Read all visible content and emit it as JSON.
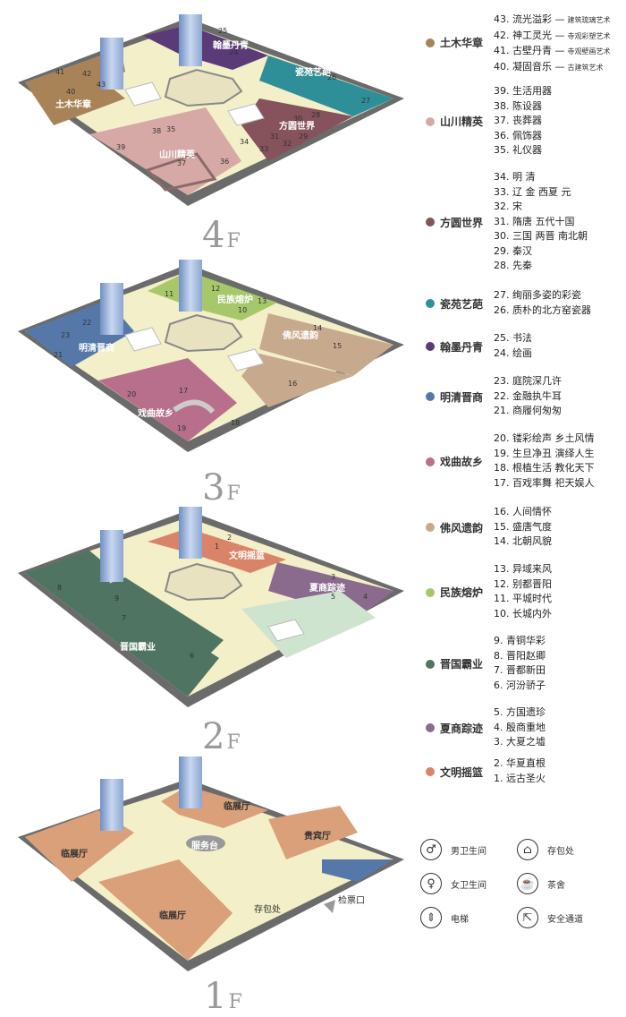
{
  "floors": [
    {
      "id": "4F",
      "num": "4",
      "unit": "F",
      "zones": [
        {
          "name": "土木华章",
          "color": "#a88358"
        },
        {
          "name": "山川精英",
          "color": "#d7a9a6"
        },
        {
          "name": "方圆世界",
          "color": "#86525c"
        },
        {
          "name": "瓷苑艺葩",
          "color": "#2f8f98"
        },
        {
          "name": "翰墨丹青",
          "color": "#5b3a78"
        }
      ],
      "rooms": [
        "25",
        "24",
        "26",
        "27",
        "28",
        "29",
        "30",
        "31",
        "32",
        "33",
        "34",
        "35",
        "36",
        "37",
        "38",
        "39",
        "40",
        "41",
        "42",
        "43"
      ]
    },
    {
      "id": "3F",
      "num": "3",
      "unit": "F",
      "zones": [
        {
          "name": "民族熔炉",
          "color": "#a6c86a"
        },
        {
          "name": "明清晋商",
          "color": "#5678a8"
        },
        {
          "name": "佛风遗韵",
          "color": "#c7a98e"
        },
        {
          "name": "戏曲故乡",
          "color": "#b76f8c"
        }
      ],
      "rooms": [
        "10",
        "11",
        "12",
        "13",
        "14",
        "15",
        "16",
        "17",
        "18",
        "19",
        "20",
        "21",
        "22",
        "23"
      ]
    },
    {
      "id": "2F",
      "num": "2",
      "unit": "F",
      "zones": [
        {
          "name": "文明摇篮",
          "color": "#d98468"
        },
        {
          "name": "夏商踪迹",
          "color": "#8a6b8e"
        },
        {
          "name": "晋国霸业",
          "color": "#4f7461"
        }
      ],
      "rooms": [
        "1",
        "2",
        "3",
        "4",
        "5",
        "6",
        "7",
        "8",
        "9"
      ]
    },
    {
      "id": "1F",
      "num": "1",
      "unit": "F",
      "zones": [
        {
          "name": "临展厅",
          "color": "#d9a07a"
        },
        {
          "name": "临展厅",
          "color": "#d9a07a"
        },
        {
          "name": "临展厅",
          "color": "#d9a07a"
        },
        {
          "name": "贵宾厅",
          "color": "#d9a07a"
        }
      ],
      "labels": {
        "service_desk": "服务台",
        "storage": "存包处",
        "ticket": "检票口"
      }
    }
  ],
  "legend": [
    {
      "name": "土木华章",
      "color": "#a88358",
      "items": [
        {
          "text": "43. 流光溢彩 —",
          "sub": "建筑琉璃艺术"
        },
        {
          "text": "42. 神工灵光 —",
          "sub": "寺观彩塑艺术"
        },
        {
          "text": "41. 古壁丹青 —",
          "sub": "寺观壁画艺术"
        },
        {
          "text": "40. 凝固音乐 —",
          "sub": "古建筑艺术"
        }
      ]
    },
    {
      "name": "山川精英",
      "color": "#d7a9a6",
      "items": [
        {
          "text": "39. 生活用器"
        },
        {
          "text": "38. 陈设器"
        },
        {
          "text": "37. 丧葬器"
        },
        {
          "text": "36. 佩饰器"
        },
        {
          "text": "35. 礼仪器"
        }
      ]
    },
    {
      "name": "方圆世界",
      "color": "#86525c",
      "items": [
        {
          "text": "34. 明 清"
        },
        {
          "text": "33. 辽 金 西夏 元"
        },
        {
          "text": "32. 宋"
        },
        {
          "text": "31. 隋唐 五代十国"
        },
        {
          "text": "30. 三国 两晋 南北朝"
        },
        {
          "text": "29. 秦汉"
        },
        {
          "text": "28. 先秦"
        }
      ]
    },
    {
      "name": "瓷苑艺葩",
      "color": "#2f8f98",
      "items": [
        {
          "text": "27. 绚丽多姿的彩瓷"
        },
        {
          "text": "26. 质朴的北方窑瓷器"
        }
      ]
    },
    {
      "name": "翰墨丹青",
      "color": "#5b3a78",
      "items": [
        {
          "text": "25. 书法"
        },
        {
          "text": "24. 绘画"
        }
      ]
    },
    {
      "name": "明清晋商",
      "color": "#5678a8",
      "items": [
        {
          "text": "23. 庭院深几许"
        },
        {
          "text": "22. 金融执牛耳"
        },
        {
          "text": "21. 商履何匆匆"
        }
      ]
    },
    {
      "name": "戏曲故乡",
      "color": "#b76f8c",
      "items": [
        {
          "text": "20. 镂彩绘声 乡土风情"
        },
        {
          "text": "19. 生旦净丑 演绎人生"
        },
        {
          "text": "18. 根植生活 教化天下"
        },
        {
          "text": "17. 百戏率舞 祀天娱人"
        }
      ]
    },
    {
      "name": "佛风遗韵",
      "color": "#c7a98e",
      "items": [
        {
          "text": "16. 人间情怀"
        },
        {
          "text": "15. 盛唐气度"
        },
        {
          "text": "14. 北朝风貌"
        }
      ]
    },
    {
      "name": "民族熔炉",
      "color": "#a6c86a",
      "items": [
        {
          "text": "13. 异域来风"
        },
        {
          "text": "12. 别都晋阳"
        },
        {
          "text": "11. 平城时代"
        },
        {
          "text": "10. 长城内外"
        }
      ]
    },
    {
      "name": "晋国霸业",
      "color": "#4f7461",
      "items": [
        {
          "text": "9. 青铜华彩"
        },
        {
          "text": "8. 晋阳赵卿"
        },
        {
          "text": "7. 晋都新田"
        },
        {
          "text": "6. 河汾骄子"
        }
      ]
    },
    {
      "name": "夏商踪迹",
      "color": "#8a6b8e",
      "items": [
        {
          "text": "5. 方国遗珍"
        },
        {
          "text": "4. 殷商重地"
        },
        {
          "text": "3. 大夏之墟"
        }
      ]
    },
    {
      "name": "文明摇篮",
      "color": "#d98468",
      "items": [
        {
          "text": "2. 华夏直根"
        },
        {
          "text": "1. 远古圣火"
        }
      ]
    }
  ],
  "facilities": [
    {
      "icon": "male-restroom-icon",
      "glyph": "♂",
      "label": "男卫生间"
    },
    {
      "icon": "luggage-icon",
      "glyph": "⌂",
      "label": "存包处"
    },
    {
      "icon": "female-restroom-icon",
      "glyph": "♀",
      "label": "女卫生间"
    },
    {
      "icon": "teahouse-icon",
      "glyph": "☕",
      "label": "茶舍"
    },
    {
      "icon": "elevator-icon",
      "glyph": "⇕",
      "label": "电梯"
    },
    {
      "icon": "safety-exit-icon",
      "glyph": "⇱",
      "label": "安全通道"
    }
  ]
}
